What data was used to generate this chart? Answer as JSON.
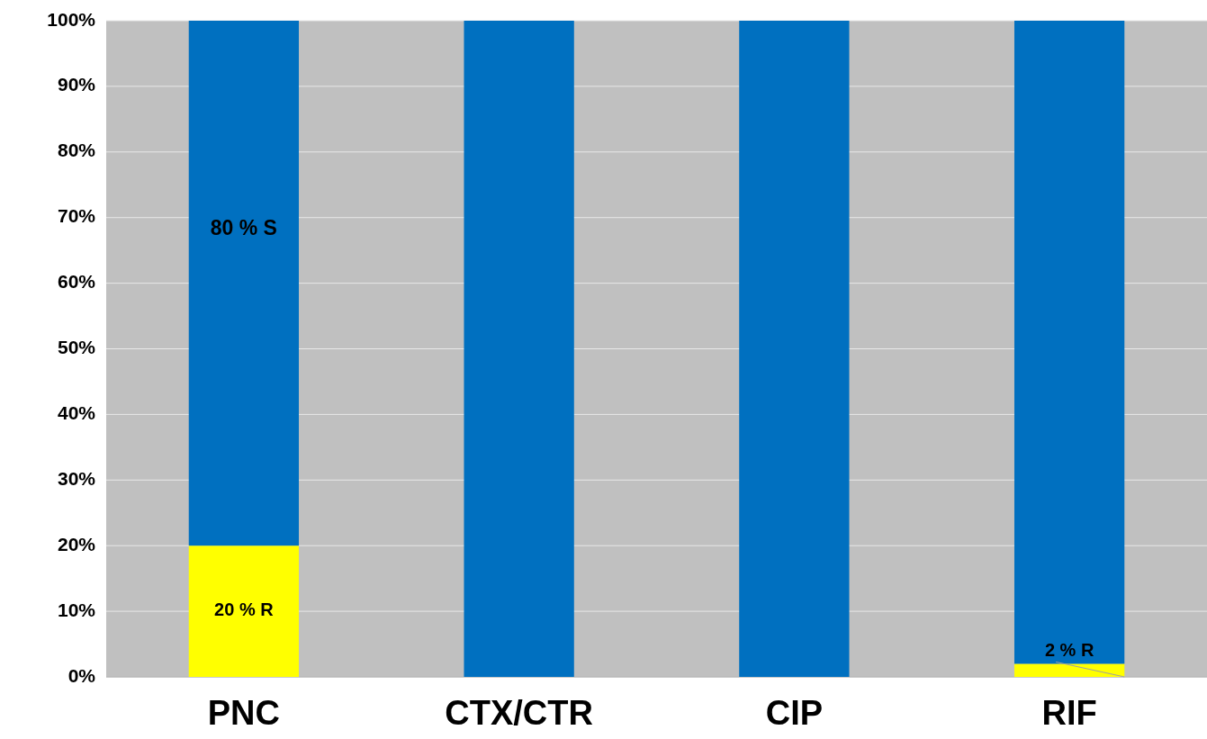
{
  "chart_data": {
    "type": "bar",
    "stacked": true,
    "categories": [
      "PNC",
      "CTX/CTR",
      "CIP",
      "RIF"
    ],
    "series": [
      {
        "color": "#ffff00",
        "values": [
          20,
          0,
          0,
          2
        ],
        "value_labels": [
          "20 % R",
          null,
          null,
          "2 % R"
        ]
      },
      {
        "color": "#0070c0",
        "values": [
          80,
          100,
          100,
          98
        ],
        "value_labels": [
          "80 % S",
          null,
          null,
          null
        ]
      }
    ],
    "ylim": [
      0,
      100
    ],
    "yticks": [
      {
        "value": 0,
        "label": "0%"
      },
      {
        "value": 10,
        "label": "10%"
      },
      {
        "value": 20,
        "label": "20%"
      },
      {
        "value": 30,
        "label": "30%"
      },
      {
        "value": 40,
        "label": "40%"
      },
      {
        "value": 50,
        "label": "50%"
      },
      {
        "value": 60,
        "label": "60%"
      },
      {
        "value": 70,
        "label": "70%"
      },
      {
        "value": 80,
        "label": "80%"
      },
      {
        "value": 90,
        "label": "90%"
      },
      {
        "value": 100,
        "label": "100%"
      }
    ],
    "grid": "y"
  }
}
